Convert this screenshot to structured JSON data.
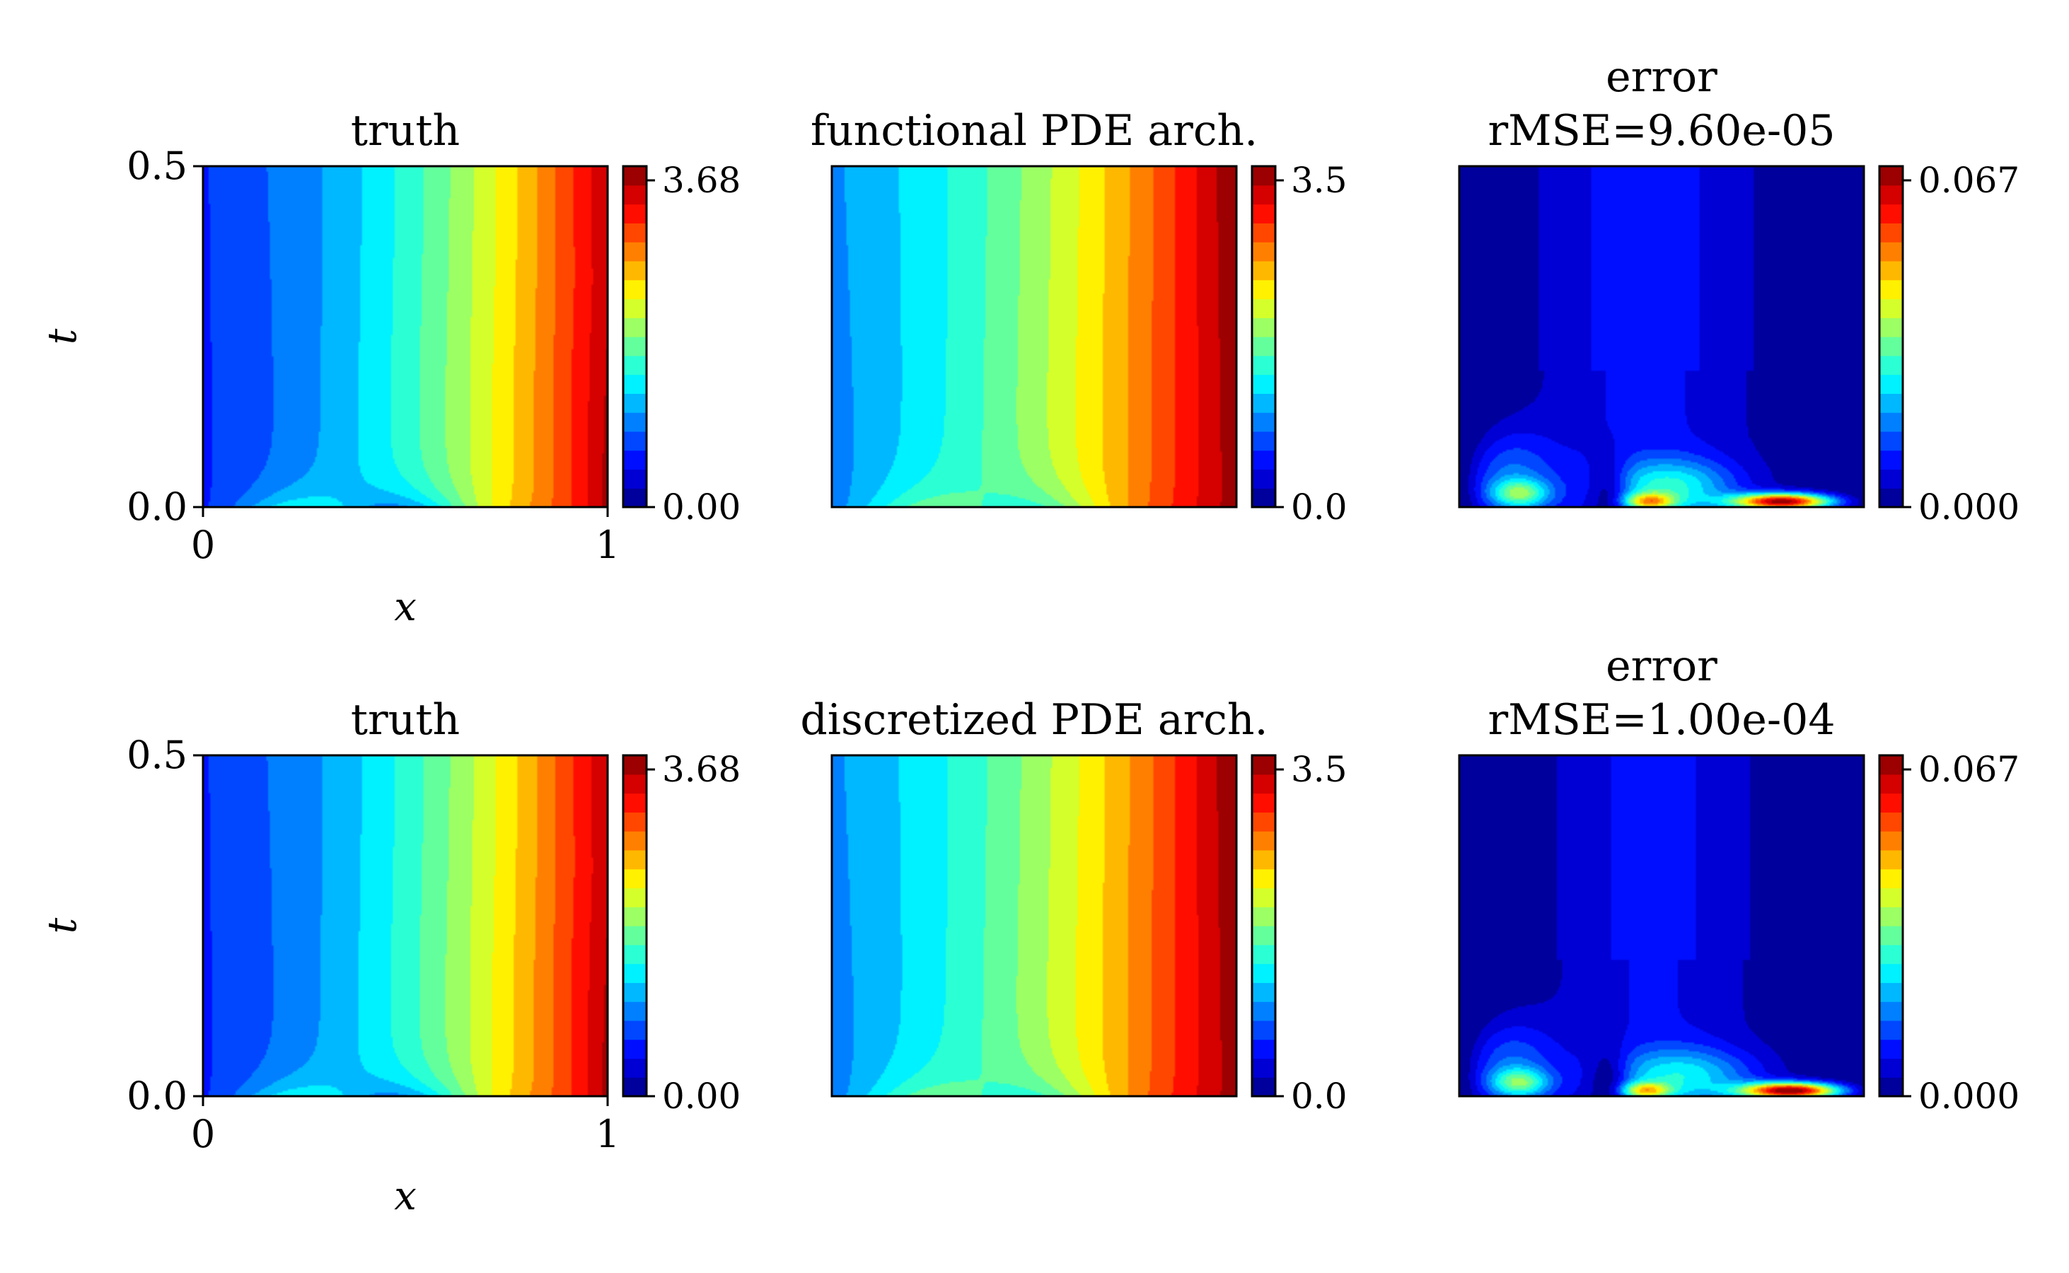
{
  "figure": {
    "panels": [
      {
        "id": "truth_top",
        "kind": "field",
        "variant": "truth",
        "title_lines": [
          "truth"
        ],
        "cbar_ticks": [
          "3.68",
          "0.00"
        ],
        "show_ylabel": true,
        "show_xticks": true
      },
      {
        "id": "functional",
        "kind": "field",
        "variant": "func",
        "title_lines": [
          "functional PDE arch."
        ],
        "cbar_ticks": [
          "3.5",
          "0.0"
        ],
        "show_ylabel": false,
        "show_xticks": false
      },
      {
        "id": "error_top",
        "kind": "error",
        "variant": "err1",
        "title_lines": [
          "error",
          "rMSE=9.60e-05"
        ],
        "cbar_ticks": [
          "0.067",
          "0.000"
        ],
        "show_ylabel": false,
        "show_xticks": false
      },
      {
        "id": "truth_bottom",
        "kind": "field",
        "variant": "truth",
        "title_lines": [
          "truth"
        ],
        "cbar_ticks": [
          "3.68",
          "0.00"
        ],
        "show_ylabel": true,
        "show_xticks": true
      },
      {
        "id": "discretized",
        "kind": "field",
        "variant": "func",
        "title_lines": [
          "discretized PDE arch."
        ],
        "cbar_ticks": [
          "3.5",
          "0.0"
        ],
        "show_ylabel": false,
        "show_xticks": false
      },
      {
        "id": "error_bottom",
        "kind": "error",
        "variant": "err2",
        "title_lines": [
          "error",
          "rMSE=1.00e-04"
        ],
        "cbar_ticks": [
          "0.067",
          "0.000"
        ],
        "show_ylabel": false,
        "show_xticks": false
      }
    ],
    "axis": {
      "xlabel": "x",
      "ylabel": "t",
      "xticks": [
        "0",
        "1"
      ],
      "yticks": [
        "0.5",
        "0.0"
      ]
    },
    "colormap": "jet"
  },
  "chart_data": [
    {
      "type": "heatmap",
      "title": "truth",
      "xlabel": "x",
      "ylabel": "t",
      "xlim": [
        0,
        1
      ],
      "ylim": [
        0,
        0.5
      ],
      "colorbar_range": [
        0.0,
        3.68
      ],
      "colormap": "jet"
    },
    {
      "type": "heatmap",
      "title": "functional PDE arch.",
      "xlim": [
        0,
        1
      ],
      "ylim": [
        0,
        0.5
      ],
      "colorbar_range": [
        0.0,
        3.5
      ],
      "colormap": "jet"
    },
    {
      "type": "heatmap",
      "title": "error rMSE=9.60e-05",
      "xlim": [
        0,
        1
      ],
      "ylim": [
        0,
        0.5
      ],
      "colorbar_range": [
        0.0,
        0.067
      ],
      "colormap": "jet"
    },
    {
      "type": "heatmap",
      "title": "truth",
      "xlabel": "x",
      "ylabel": "t",
      "xlim": [
        0,
        1
      ],
      "ylim": [
        0,
        0.5
      ],
      "colorbar_range": [
        0.0,
        3.68
      ],
      "colormap": "jet"
    },
    {
      "type": "heatmap",
      "title": "discretized PDE arch.",
      "xlim": [
        0,
        1
      ],
      "ylim": [
        0,
        0.5
      ],
      "colorbar_range": [
        0.0,
        3.5
      ],
      "colormap": "jet"
    },
    {
      "type": "heatmap",
      "title": "error rMSE=1.00e-04",
      "xlim": [
        0,
        1
      ],
      "ylim": [
        0,
        0.5
      ],
      "colorbar_range": [
        0.0,
        0.067
      ],
      "colormap": "jet"
    }
  ]
}
